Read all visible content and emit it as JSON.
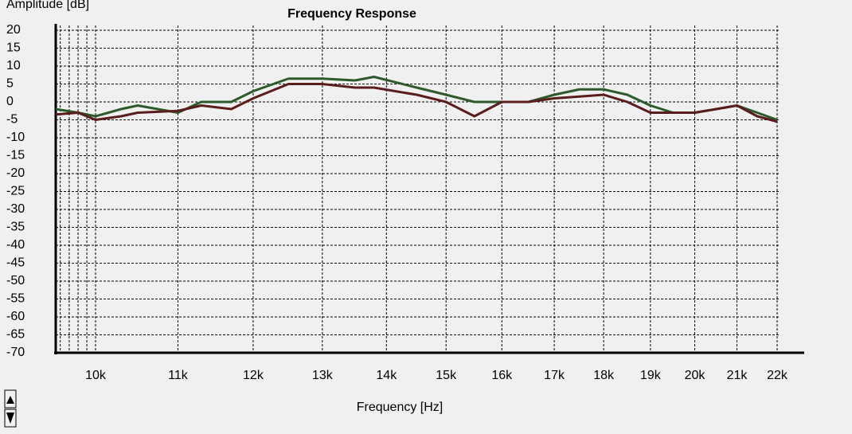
{
  "chart_data": {
    "type": "line",
    "title": "Frequency Response",
    "y_label": "Amplitude [dB]",
    "x_label": "Frequency [Hz]",
    "x_scale": "log",
    "grid": true,
    "xlim": [
      9550,
      22000
    ],
    "ylim": [
      -70,
      20
    ],
    "xticks": [
      {
        "value": 10000,
        "label": "10k"
      },
      {
        "value": 11000,
        "label": "11k"
      },
      {
        "value": 12000,
        "label": "12k"
      },
      {
        "value": 13000,
        "label": "13k"
      },
      {
        "value": 14000,
        "label": "14k"
      },
      {
        "value": 15000,
        "label": "15k"
      },
      {
        "value": 16000,
        "label": "16k"
      },
      {
        "value": 17000,
        "label": "17k"
      },
      {
        "value": 18000,
        "label": "18k"
      },
      {
        "value": 19000,
        "label": "19k"
      },
      {
        "value": 20000,
        "label": "20k"
      },
      {
        "value": 21000,
        "label": "21k"
      },
      {
        "value": 22000,
        "label": "22k"
      }
    ],
    "xminor": [
      9600,
      9700,
      9800,
      9900
    ],
    "yticks": [
      20,
      15,
      10,
      5,
      0,
      -5,
      -10,
      -15,
      -20,
      -25,
      -30,
      -35,
      -40,
      -45,
      -50,
      -55,
      -60,
      -65,
      -70
    ],
    "x": [
      9550,
      9800,
      10000,
      10300,
      10500,
      11000,
      11300,
      11700,
      12000,
      12500,
      13000,
      13500,
      13800,
      14500,
      15000,
      15500,
      16000,
      16500,
      17000,
      17500,
      18000,
      18500,
      19000,
      19500,
      20000,
      20500,
      21000,
      21500,
      22000
    ],
    "series": [
      {
        "color": "#2b5a2b",
        "values": [
          -2,
          -3,
          -4,
          -2,
          -1,
          -3,
          0,
          0,
          3,
          6.5,
          6.5,
          6,
          7,
          4,
          2,
          0,
          0,
          0,
          2,
          3.5,
          3.5,
          2,
          -1,
          -3,
          -3,
          -2,
          -1,
          -3,
          -5
        ]
      },
      {
        "color": "#5a1c1c",
        "values": [
          -3.5,
          -3,
          -5,
          -4,
          -3,
          -2.5,
          -1,
          -2,
          1,
          5,
          5,
          4,
          4,
          2,
          0,
          -4,
          0,
          0,
          1,
          1.5,
          2,
          0,
          -3,
          -3,
          -3,
          -2,
          -1,
          -4,
          -5.5
        ]
      }
    ]
  }
}
